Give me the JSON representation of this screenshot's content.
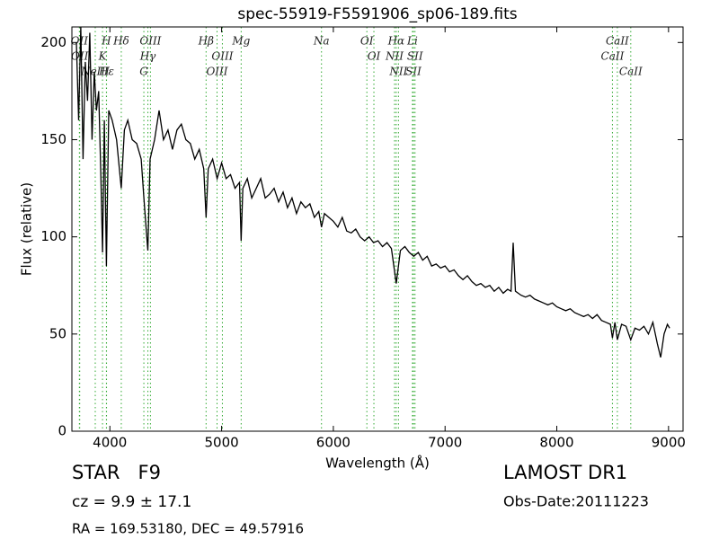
{
  "chart_data": {
    "type": "line",
    "title": "spec-55919-F5591906_sp06-189.fits",
    "x_label": "Wavelength (Å)",
    "y_label": "Flux (relative)",
    "xlim": [
      3660,
      9130
    ],
    "ylim": [
      0,
      208
    ],
    "xticks": [
      4000,
      5000,
      6000,
      7000,
      8000,
      9000
    ],
    "yticks": [
      0,
      50,
      100,
      150,
      200
    ],
    "x": [
      3700,
      3720,
      3740,
      3760,
      3780,
      3800,
      3820,
      3840,
      3860,
      3880,
      3900,
      3920,
      3934,
      3950,
      3969,
      3990,
      4020,
      4060,
      4102,
      4130,
      4160,
      4200,
      4240,
      4280,
      4304,
      4330,
      4340,
      4360,
      4400,
      4440,
      4480,
      4520,
      4560,
      4600,
      4640,
      4680,
      4720,
      4760,
      4800,
      4840,
      4861,
      4880,
      4920,
      4960,
      5000,
      5040,
      5080,
      5120,
      5160,
      5175,
      5190,
      5230,
      5270,
      5310,
      5350,
      5390,
      5430,
      5470,
      5510,
      5550,
      5590,
      5630,
      5670,
      5710,
      5750,
      5790,
      5830,
      5870,
      5894,
      5920,
      5960,
      6000,
      6040,
      6080,
      6120,
      6160,
      6200,
      6240,
      6280,
      6320,
      6360,
      6400,
      6440,
      6480,
      6520,
      6563,
      6600,
      6640,
      6680,
      6720,
      6760,
      6800,
      6840,
      6880,
      6920,
      6960,
      7000,
      7040,
      7080,
      7120,
      7160,
      7200,
      7240,
      7280,
      7320,
      7360,
      7400,
      7440,
      7480,
      7520,
      7560,
      7590,
      7610,
      7630,
      7680,
      7720,
      7760,
      7800,
      7840,
      7880,
      7920,
      7960,
      8000,
      8040,
      8080,
      8120,
      8160,
      8200,
      8240,
      8280,
      8320,
      8360,
      8400,
      8440,
      8480,
      8498,
      8520,
      8542,
      8580,
      8620,
      8662,
      8700,
      8740,
      8780,
      8820,
      8860,
      8900,
      8930,
      8960,
      8990,
      9010
    ],
    "series": [
      {
        "name": "flux",
        "color": "#000000",
        "values": [
          200,
          160,
          208,
          140,
          190,
          170,
          205,
          150,
          185,
          165,
          175,
          130,
          92,
          160,
          85,
          165,
          160,
          150,
          125,
          155,
          160,
          150,
          148,
          140,
          120,
          100,
          93,
          140,
          150,
          165,
          150,
          155,
          145,
          155,
          158,
          150,
          148,
          140,
          145,
          135,
          110,
          135,
          140,
          130,
          138,
          130,
          132,
          125,
          128,
          98,
          125,
          130,
          120,
          125,
          130,
          120,
          122,
          125,
          118,
          123,
          115,
          120,
          112,
          118,
          115,
          117,
          110,
          113,
          105,
          112,
          110,
          108,
          105,
          110,
          103,
          102,
          104,
          100,
          98,
          100,
          97,
          98,
          95,
          97,
          94,
          76,
          93,
          95,
          92,
          90,
          92,
          88,
          90,
          85,
          86,
          84,
          85,
          82,
          83,
          80,
          78,
          80,
          77,
          75,
          76,
          74,
          75,
          72,
          74,
          71,
          73,
          72,
          97,
          72,
          70,
          69,
          70,
          68,
          67,
          66,
          65,
          66,
          64,
          63,
          62,
          63,
          61,
          60,
          59,
          60,
          58,
          60,
          57,
          56,
          55,
          48,
          56,
          47,
          55,
          54,
          47,
          53,
          52,
          54,
          50,
          56,
          45,
          38,
          50,
          55,
          53
        ]
      }
    ],
    "line_color": "#33aa33",
    "spectral_lines": [
      {
        "label": "OII",
        "wavelength": 3727
      },
      {
        "label": "OII",
        "wavelength": 3730
      },
      {
        "label": "H",
        "wavelength": 3969
      },
      {
        "label": "K",
        "wavelength": 3934
      },
      {
        "label": "NeIII",
        "wavelength": 3869
      },
      {
        "label": "Hε",
        "wavelength": 3970
      },
      {
        "label": "Hδ",
        "wavelength": 4102
      },
      {
        "label": "OIII",
        "wavelength": 4363
      },
      {
        "label": "Hγ",
        "wavelength": 4340
      },
      {
        "label": "G",
        "wavelength": 4304
      },
      {
        "label": "Hβ",
        "wavelength": 4861
      },
      {
        "label": "OIII",
        "wavelength": 5007
      },
      {
        "label": "OIII",
        "wavelength": 4959
      },
      {
        "label": "Mg",
        "wavelength": 5175
      },
      {
        "label": "Na",
        "wavelength": 5894
      },
      {
        "label": "OI",
        "wavelength": 6300
      },
      {
        "label": "OI",
        "wavelength": 6363
      },
      {
        "label": "Hα",
        "wavelength": 6563
      },
      {
        "label": "NII",
        "wavelength": 6548
      },
      {
        "label": "NII",
        "wavelength": 6583
      },
      {
        "label": "SII",
        "wavelength": 6717
      },
      {
        "label": "Li",
        "wavelength": 6708
      },
      {
        "label": "SII",
        "wavelength": 6731
      },
      {
        "label": "CaII",
        "wavelength": 8542
      },
      {
        "label": "CaII",
        "wavelength": 8498
      },
      {
        "label": "CaII",
        "wavelength": 8662
      }
    ]
  },
  "info": {
    "object": "STAR   F9",
    "redshift": "cz = 9.9 ± 17.1",
    "coords": "RA = 169.53180, DEC = 49.57916",
    "survey": "LAMOST DR1",
    "obs_date": "Obs-Date:20111223"
  }
}
